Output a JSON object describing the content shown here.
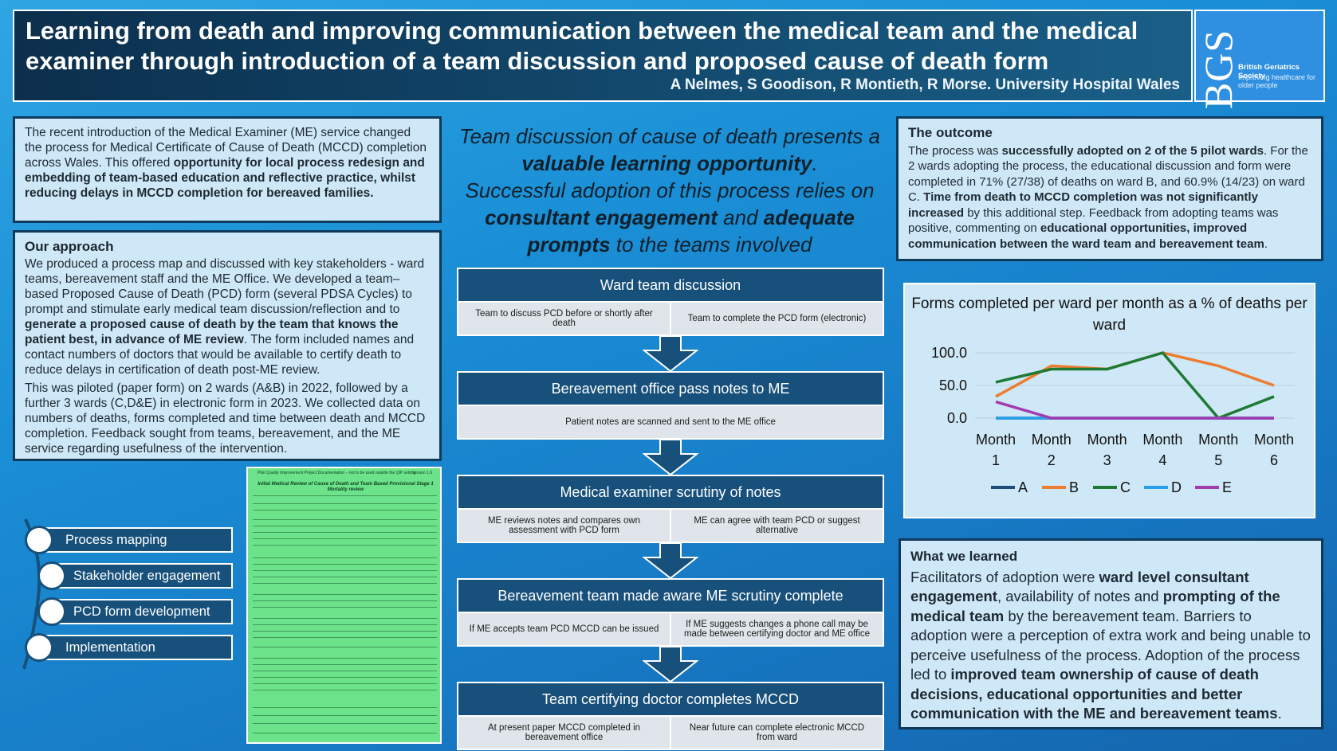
{
  "header": {
    "title": "Learning from death and improving communication between the medical team and the medical examiner through introduction of a team discussion and proposed cause of death form",
    "authors": "A Nelmes, S Goodison, R Montieth, R Morse. University Hospital Wales"
  },
  "logo": {
    "mark": "BGS",
    "name": "British Geriatrics Society",
    "tagline": "Improving healthcare for older people"
  },
  "intro": {
    "text_plain": "The recent introduction of the Medical Examiner (ME) service changed the process for Medical Certificate of Cause of Death (MCCD) completion across Wales. This offered ",
    "text_bold": "opportunity for local process redesign and embedding of team-based education and reflective practice, whilst reducing delays in MCCD completion for bereaved families."
  },
  "approach": {
    "heading": "Our approach",
    "p1_a": "We produced a process map and discussed with key stakeholders - ward teams, bereavement staff and the ME Office. We developed a team–based Proposed Cause of Death (PCD) form (several PDSA Cycles) to prompt and stimulate early medical team discussion/reflection and to ",
    "p1_bold": "generate a proposed cause of death by the team that knows the patient best, in advance of ME review",
    "p1_b": ". The form included names and contact numbers of doctors that would be available to certify death to reduce delays in certification of death post-ME review.",
    "p2": "This was piloted (paper form) on 2 wards (A&B) in 2022, followed by a further 3 wards (C,D&E) in electronic form in 2023. We collected data on numbers of deaths, forms completed and time between death and MCCD completion. Feedback sought from teams, bereavement, and the ME service regarding usefulness of the intervention."
  },
  "approach_steps": [
    "Process mapping",
    "Stakeholder engagement",
    "PCD form development",
    "Implementation"
  ],
  "form_image": {
    "header": "Pilot Quality Improvement Project Documentation – not to be used outside the QIP setting",
    "version": "Version 1.6",
    "title": "Initial Medical Review of Cause of Death and Team Based Provisional Stage 1 Mortality review"
  },
  "tagline": {
    "l1": "Team discussion of cause of death presents a",
    "l2": "valuable learning opportunity",
    "l2_end": ".",
    "l3": "Successful adoption of this process relies on",
    "l4a": "consultant engagement",
    "l4b": " and ",
    "l4c": "adequate",
    "l5a": "prompts",
    "l5b": " to the teams involved"
  },
  "process": [
    {
      "title": "Ward team discussion",
      "left": "Team to discuss PCD before or shortly after death",
      "right": "Team to complete the PCD form (electronic)"
    },
    {
      "title": "Bereavement office pass notes to ME",
      "single": "Patient notes are scanned and sent to the ME office"
    },
    {
      "title": "Medical examiner scrutiny of notes",
      "left": "ME reviews notes and compares own assessment with PCD form",
      "right": "ME can agree with team PCD or suggest alternative"
    },
    {
      "title": "Bereavement team made aware ME scrutiny complete",
      "left": "If ME accepts team PCD MCCD can be issued",
      "right": "If ME suggests changes a phone call may be made between certifying doctor and ME office"
    },
    {
      "title": "Team certifying doctor completes MCCD",
      "left": "At present paper MCCD completed in bereavement office",
      "right": "Near future can complete electronic MCCD from ward"
    }
  ],
  "outcome": {
    "heading": "The outcome",
    "a": "The process was ",
    "b": "successfully adopted on 2 of the 5 pilot wards",
    "c": ". For the 2 wards adopting the process, the educational discussion and form were completed in 71% (27/38) of deaths on ward B, and 60.9% (14/23) on ward C. ",
    "d": "Time from death to MCCD completion was not significantly increased",
    "e": " by this additional step. Feedback from adopting teams was positive, commenting on ",
    "f": "educational opportunities, improved communication between the ward team and bereavement team",
    "g": "."
  },
  "chart_data": {
    "type": "line",
    "title": "Forms completed per ward per month as a % of deaths per ward",
    "categories": [
      "Month 1",
      "Month 2",
      "Month 3",
      "Month 4",
      "Month 5",
      "Month 6"
    ],
    "ylim": [
      0,
      100
    ],
    "yticks": [
      "100.0",
      "50.0",
      "0.0"
    ],
    "grid": true,
    "legend_position": "bottom",
    "series": [
      {
        "name": "A",
        "color": "#1f4e79",
        "values": [
          0,
          0,
          0,
          0,
          0,
          0
        ]
      },
      {
        "name": "B",
        "color": "#ed7d31",
        "values": [
          33,
          80,
          75,
          100,
          80,
          50
        ]
      },
      {
        "name": "C",
        "color": "#1e7a34",
        "values": [
          55,
          75,
          75,
          100,
          0,
          33
        ]
      },
      {
        "name": "D",
        "color": "#2aa0e8",
        "values": [
          0,
          0,
          0,
          0,
          0,
          0
        ]
      },
      {
        "name": "E",
        "color": "#a23ab0",
        "values": [
          25,
          0,
          0,
          0,
          0,
          0
        ]
      }
    ]
  },
  "learned": {
    "heading": "What we learned",
    "a": "Facilitators of adoption were ",
    "b": "ward level consultant engagement",
    "c": ", availability of notes and ",
    "d": "prompting of the medical team",
    "e": " by the bereavement team. Barriers to adoption were a perception of extra work and being unable to perceive usefulness of the process. Adoption of the process led to ",
    "f": "improved team ownership of cause of death decisions, educational opportunities and better communication with the ME and bereavement teams",
    "g": "."
  }
}
